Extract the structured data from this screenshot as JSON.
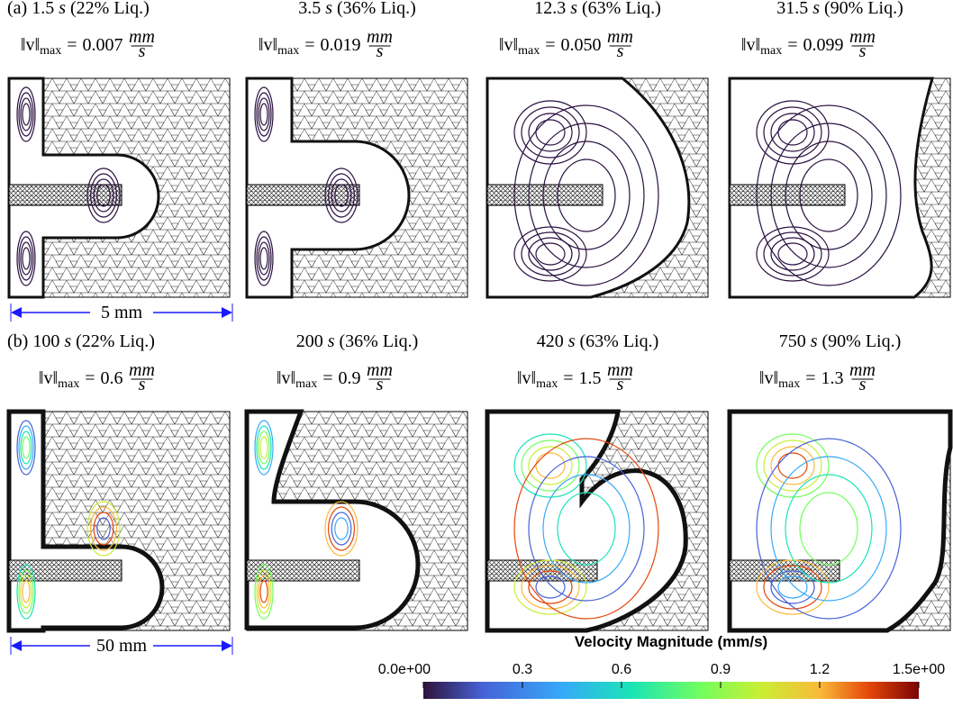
{
  "rows": [
    {
      "label": "(a)",
      "scale_bar": "5 mm",
      "panels": [
        {
          "time": "1.5",
          "percent": "(22% Liq.)",
          "vmax": "0.007"
        },
        {
          "time": "3.5",
          "percent": "(36% Liq.)",
          "vmax": "0.019"
        },
        {
          "time": "12.3",
          "percent": "(63% Liq.)",
          "vmax": "0.050"
        },
        {
          "time": "31.5",
          "percent": "(90% Liq.)",
          "vmax": "0.099"
        }
      ]
    },
    {
      "label": "(b)",
      "scale_bar": "50 mm",
      "panels": [
        {
          "time": "100",
          "percent": "(22% Liq.)",
          "vmax": "0.6"
        },
        {
          "time": "200",
          "percent": "(36% Liq.)",
          "vmax": "0.9"
        },
        {
          "time": "420",
          "percent": "(63% Liq.)",
          "vmax": "1.5"
        },
        {
          "time": "750",
          "percent": "(90% Liq.)",
          "vmax": "1.3"
        }
      ]
    }
  ],
  "time_unit": "s",
  "norm": "‖v‖",
  "norm_sub": "max",
  "equals": "=",
  "unit_num": "mm",
  "unit_den": "s",
  "colorbar": {
    "title": "Velocity Magnitude (mm/s)",
    "range": [
      0,
      1.5
    ],
    "ticks": [
      {
        "value": 0,
        "label": "0.0e+00"
      },
      0.3,
      0.6,
      0.9,
      1.2,
      {
        "value": 1.5,
        "label": "1.5e+00"
      }
    ]
  }
}
